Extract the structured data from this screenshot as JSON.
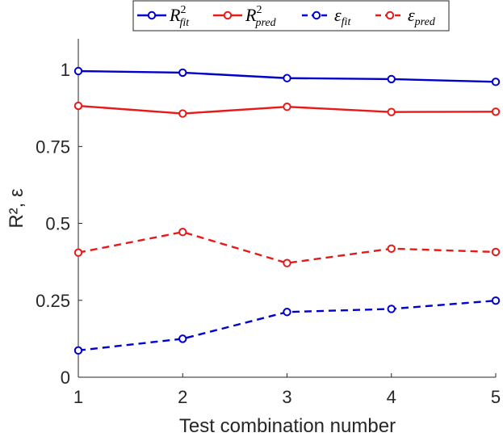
{
  "chart_data": {
    "type": "line",
    "xlabel": "Test combination number",
    "ylabel": "R², ε",
    "x": [
      1,
      2,
      3,
      4,
      5
    ],
    "xlim": [
      1,
      5
    ],
    "ylim": [
      0,
      1.1
    ],
    "xticks": [
      "1",
      "2",
      "3",
      "4",
      "5"
    ],
    "yticks": [
      {
        "value": 0,
        "label": "0"
      },
      {
        "value": 0.25,
        "label": "0.25"
      },
      {
        "value": 0.5,
        "label": "0.5"
      },
      {
        "value": 0.75,
        "label": "0.75"
      },
      {
        "value": 1,
        "label": "1"
      }
    ],
    "grid": false,
    "legend_position": "top-center",
    "series": [
      {
        "name": "R²fit",
        "base": "R",
        "sup": "2",
        "sub": "fit",
        "color": "#0000cc",
        "dash": "solid",
        "marker": "circle",
        "values": [
          0.995,
          0.99,
          0.972,
          0.969,
          0.96
        ]
      },
      {
        "name": "R²pred",
        "base": "R",
        "sup": "2",
        "sub": "pred",
        "color": "#e81919",
        "dash": "solid",
        "marker": "circle",
        "values": [
          0.882,
          0.857,
          0.879,
          0.862,
          0.863
        ]
      },
      {
        "name": "εfit",
        "base": "ε",
        "sup": "",
        "sub": "fit",
        "color": "#0000cc",
        "dash": "dashed",
        "marker": "circle",
        "values": [
          0.087,
          0.125,
          0.212,
          0.222,
          0.249
        ]
      },
      {
        "name": "εpred",
        "base": "ε",
        "sup": "",
        "sub": "pred",
        "color": "#e81919",
        "dash": "dashed",
        "marker": "circle",
        "values": [
          0.405,
          0.472,
          0.371,
          0.418,
          0.407
        ]
      }
    ]
  }
}
